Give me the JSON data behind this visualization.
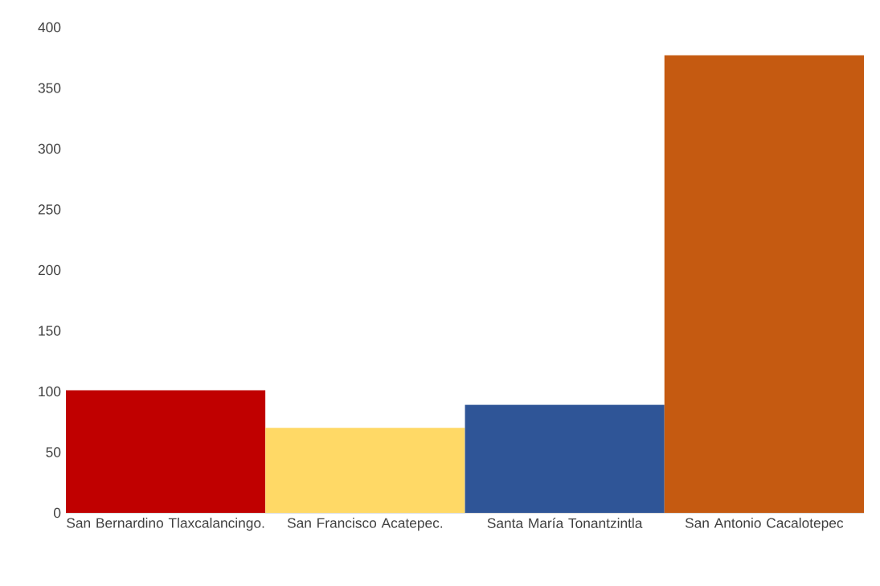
{
  "chart_data": {
    "type": "bar",
    "categories": [
      "San Bernardino Tlaxcalancingo.",
      "San Francisco Acatepec.",
      "Santa María Tonantzintla",
      "San Antonio Cacalotepec"
    ],
    "values": [
      101,
      70,
      89,
      377
    ],
    "colors": [
      "#c00000",
      "#ffd966",
      "#2f5597",
      "#c55a11"
    ],
    "ylim": [
      0,
      400
    ],
    "yticks": [
      0,
      50,
      100,
      150,
      200,
      250,
      300,
      350,
      400
    ]
  }
}
